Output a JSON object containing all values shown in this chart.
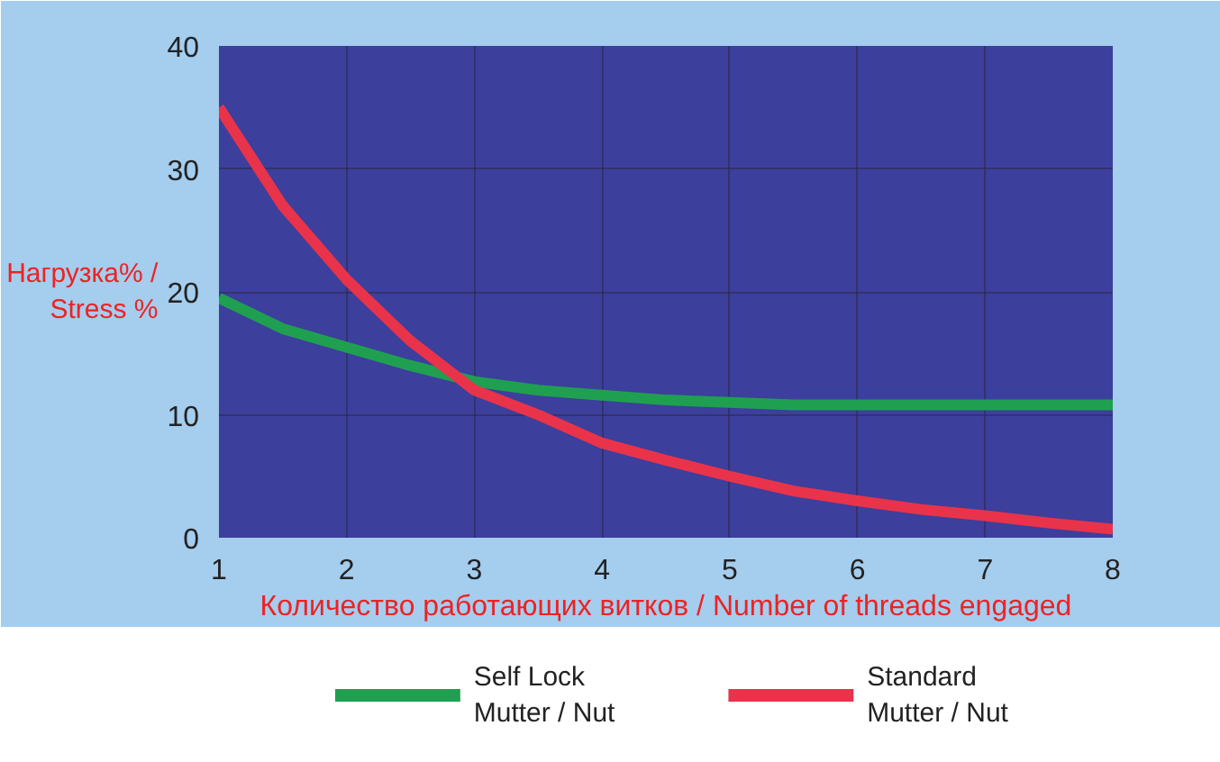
{
  "chart_data": {
    "type": "line",
    "xlabel": "Количество работающих витков / Number of threads engaged",
    "ylabel": "Нагрузка% /\nStress %",
    "x": [
      1,
      1.5,
      2,
      2.5,
      3,
      3.5,
      4,
      4.5,
      5,
      5.5,
      6,
      6.5,
      7,
      7.5,
      8
    ],
    "series": [
      {
        "name": "Self Lock\nMutter / Nut",
        "color": "#1fa050",
        "values": [
          19.5,
          17,
          15.5,
          14,
          12.7,
          12,
          11.6,
          11.2,
          11,
          10.8,
          10.8,
          10.8,
          10.8,
          10.8,
          10.8
        ]
      },
      {
        "name": "Standard\nMutter / Nut",
        "color": "#e8334a",
        "values": [
          35,
          27,
          21,
          16,
          12,
          10,
          7.7,
          6.3,
          5,
          3.8,
          3,
          2.3,
          1.8,
          1.2,
          0.7
        ]
      }
    ],
    "xlim": [
      1,
      8
    ],
    "ylim": [
      0,
      40
    ],
    "xticks": [
      1,
      2,
      3,
      4,
      5,
      6,
      7,
      8
    ],
    "yticks": [
      0,
      10,
      20,
      30,
      40
    ],
    "grid": true,
    "legend": "bottom",
    "marker": "none",
    "line_style": "solid"
  }
}
